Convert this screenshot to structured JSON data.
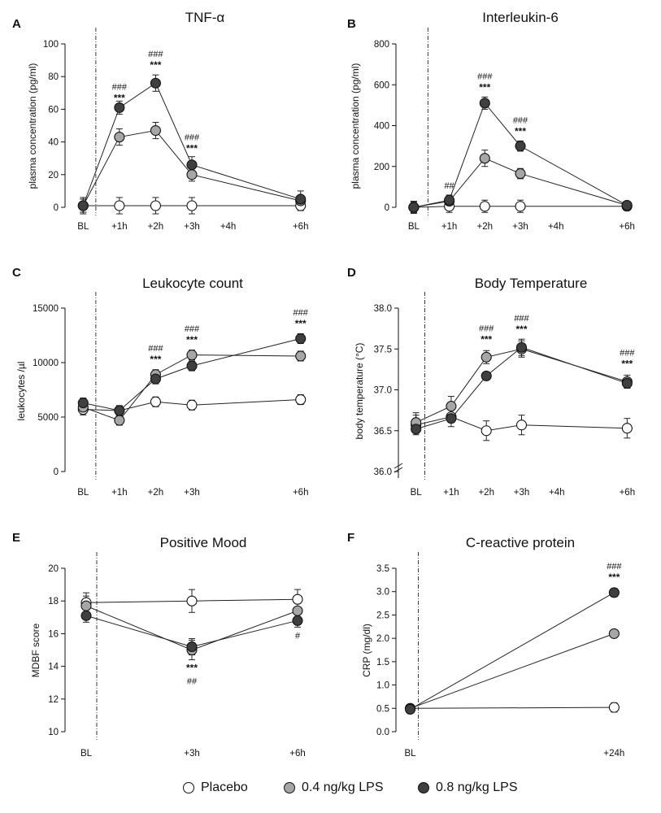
{
  "legend": [
    {
      "label": "Placebo",
      "color": "#ffffff"
    },
    {
      "label": "0.4 ng/kg LPS",
      "color": "#a6a6a6"
    },
    {
      "label": "0.8 ng/kg LPS",
      "color": "#3f3f3f"
    }
  ],
  "chart_data": [
    {
      "letter": "A",
      "type": "line",
      "title": "TNF-α",
      "ylabel": "plasma concentration (pg/ml)",
      "ylim": [
        0,
        100
      ],
      "yticks": [
        "0",
        "20",
        "40",
        "60",
        "80",
        "100"
      ],
      "xlim": [
        -0.5,
        6.5
      ],
      "xtick_labels": [
        {
          "x": 0,
          "label": "BL"
        },
        {
          "x": 1,
          "label": "+1h"
        },
        {
          "x": 2,
          "label": "+2h"
        },
        {
          "x": 3,
          "label": "+3h"
        },
        {
          "x": 4,
          "label": "+4h"
        },
        {
          "x": 6,
          "label": "+6h"
        }
      ],
      "baseline_x": 0.35,
      "series": [
        {
          "name": "Placebo",
          "x": [
            0,
            1,
            2,
            3,
            6
          ],
          "values": [
            1,
            1,
            1,
            1,
            1
          ],
          "err": [
            5,
            5,
            5,
            5,
            3
          ]
        },
        {
          "name": "0.4 ng/kg LPS",
          "x": [
            0,
            1,
            2,
            3,
            6
          ],
          "values": [
            1,
            43,
            47,
            20,
            4
          ],
          "err": [
            4,
            5,
            5,
            4,
            3
          ]
        },
        {
          "name": "0.8 ng/kg LPS",
          "x": [
            0,
            1,
            2,
            3,
            6
          ],
          "values": [
            1,
            61,
            76,
            26,
            5
          ],
          "err": [
            4,
            4,
            5,
            5,
            5
          ]
        }
      ],
      "annotations": [
        {
          "x": 1,
          "y": 61,
          "top": "###",
          "bottom": "***"
        },
        {
          "x": 2,
          "y": 81,
          "top": "###",
          "bottom": "***"
        },
        {
          "x": 3,
          "y": 30,
          "top": "###",
          "bottom": "***"
        }
      ]
    },
    {
      "letter": "B",
      "type": "line",
      "title": "Interleukin-6",
      "ylabel": "plasma concentration (pg/ml)",
      "ylim": [
        0,
        800
      ],
      "yticks": [
        "0",
        "200",
        "400",
        "600",
        "800"
      ],
      "xlim": [
        -0.5,
        6.5
      ],
      "xtick_labels": [
        {
          "x": 0,
          "label": "BL"
        },
        {
          "x": 1,
          "label": "+1h"
        },
        {
          "x": 2,
          "label": "+2h"
        },
        {
          "x": 3,
          "label": "+3h"
        },
        {
          "x": 4,
          "label": "+4h"
        },
        {
          "x": 6,
          "label": "+6h"
        }
      ],
      "baseline_x": 0.4,
      "series": [
        {
          "name": "Placebo",
          "x": [
            0,
            1,
            2,
            3,
            6
          ],
          "values": [
            0,
            5,
            5,
            5,
            5
          ],
          "err": [
            30,
            30,
            30,
            30,
            20
          ]
        },
        {
          "name": "0.4 ng/kg LPS",
          "x": [
            0,
            1,
            2,
            3,
            6
          ],
          "values": [
            0,
            30,
            240,
            165,
            10
          ],
          "err": [
            25,
            25,
            40,
            25,
            15
          ]
        },
        {
          "name": "0.8 ng/kg LPS",
          "x": [
            0,
            1,
            2,
            3,
            6
          ],
          "values": [
            0,
            35,
            510,
            300,
            10
          ],
          "err": [
            25,
            25,
            30,
            25,
            15
          ]
        }
      ],
      "annotations": [
        {
          "x": 1,
          "y": 60,
          "top": "##",
          "bottom": ""
        },
        {
          "x": 2,
          "y": 540,
          "top": "###",
          "bottom": "***"
        },
        {
          "x": 3,
          "y": 325,
          "top": "###",
          "bottom": "***"
        }
      ]
    },
    {
      "letter": "C",
      "type": "line",
      "title": "Leukocyte count",
      "ylabel": "leukocytes /µl",
      "ylim": [
        0,
        15000
      ],
      "yticks": [
        "0",
        "5000",
        "10000",
        "15000"
      ],
      "xlim": [
        -0.5,
        6.5
      ],
      "xtick_labels": [
        {
          "x": 0,
          "label": "BL"
        },
        {
          "x": 1,
          "label": "+1h"
        },
        {
          "x": 2,
          "label": "+2h"
        },
        {
          "x": 3,
          "label": "+3h"
        },
        {
          "x": 6,
          "label": "+6h"
        }
      ],
      "baseline_x": 0.35,
      "series": [
        {
          "name": "Placebo",
          "x": [
            0,
            1,
            2,
            3,
            6
          ],
          "values": [
            5700,
            5600,
            6400,
            6100,
            6600
          ],
          "err": [
            500,
            450,
            450,
            450,
            450
          ]
        },
        {
          "name": "0.4 ng/kg LPS",
          "x": [
            0,
            1,
            2,
            3,
            6
          ],
          "values": [
            5900,
            4700,
            8900,
            10700,
            10600
          ],
          "err": [
            500,
            450,
            450,
            450,
            450
          ]
        },
        {
          "name": "0.8 ng/kg LPS",
          "x": [
            0,
            1,
            2,
            3,
            6
          ],
          "values": [
            6300,
            5600,
            8500,
            9700,
            12200
          ],
          "err": [
            450,
            450,
            450,
            450,
            450
          ]
        }
      ],
      "annotations": [
        {
          "x": 2,
          "y": 9400,
          "top": "###",
          "bottom": "***"
        },
        {
          "x": 3,
          "y": 11200,
          "top": "###",
          "bottom": "***"
        },
        {
          "x": 6,
          "y": 12700,
          "top": "###",
          "bottom": "***"
        }
      ]
    },
    {
      "letter": "D",
      "type": "line",
      "title": "Body Temperature",
      "ylabel": "body temperature (°C)",
      "ylim": [
        36.0,
        38.0
      ],
      "yticks": [
        "36.0",
        "36.5",
        "37.0",
        "37.5",
        "38.0"
      ],
      "axis_break": true,
      "xlim": [
        -0.5,
        6.5
      ],
      "xtick_labels": [
        {
          "x": 0,
          "label": "BL"
        },
        {
          "x": 1,
          "label": "+1h"
        },
        {
          "x": 2,
          "label": "+2h"
        },
        {
          "x": 3,
          "label": "+3h"
        },
        {
          "x": 4,
          "label": "+4h"
        },
        {
          "x": 6,
          "label": "+6h"
        }
      ],
      "baseline_x": 0.25,
      "series": [
        {
          "name": "Placebo",
          "x": [
            0,
            1,
            2,
            3,
            6
          ],
          "values": [
            36.57,
            36.67,
            36.5,
            36.57,
            36.53
          ],
          "err": [
            0.12,
            0.12,
            0.12,
            0.12,
            0.12
          ]
        },
        {
          "name": "0.4 ng/kg LPS",
          "x": [
            0,
            1,
            2,
            3,
            6
          ],
          "values": [
            36.6,
            36.8,
            37.4,
            37.5,
            37.1
          ],
          "err": [
            0.12,
            0.12,
            0.08,
            0.1,
            0.08
          ]
        },
        {
          "name": "0.8 ng/kg LPS",
          "x": [
            0,
            1,
            2,
            3,
            6
          ],
          "values": [
            36.52,
            36.65,
            37.17,
            37.52,
            37.08
          ],
          "err": [
            0.05,
            0.05,
            0.05,
            0.1,
            0.06
          ]
        }
      ],
      "annotations": [
        {
          "x": 2,
          "y": 37.5,
          "top": "###",
          "bottom": "***"
        },
        {
          "x": 3,
          "y": 37.62,
          "top": "###",
          "bottom": "***"
        },
        {
          "x": 6,
          "y": 37.2,
          "top": "###",
          "bottom": "***"
        }
      ]
    },
    {
      "letter": "E",
      "type": "line",
      "title": "Positive Mood",
      "ylabel": "MDBF score",
      "ylim": [
        10,
        20
      ],
      "yticks": [
        "10",
        "12",
        "14",
        "16",
        "18",
        "20"
      ],
      "xlim": [
        -0.3,
        3.3
      ],
      "xtick_labels": [
        {
          "x": 0,
          "label": "BL"
        },
        {
          "x": 1.5,
          "label": "+3h"
        },
        {
          "x": 3,
          "label": "+6h"
        }
      ],
      "baseline_x": 0.15,
      "series": [
        {
          "name": "Placebo",
          "x": [
            0,
            1.5,
            3
          ],
          "values": [
            17.9,
            18.0,
            18.1
          ],
          "err": [
            0.6,
            0.7,
            0.6
          ]
        },
        {
          "name": "0.4 ng/kg LPS",
          "x": [
            0,
            1.5,
            3
          ],
          "values": [
            17.7,
            15.0,
            17.4
          ],
          "err": [
            0.6,
            0.6,
            0.5
          ]
        },
        {
          "name": "0.8 ng/kg LPS",
          "x": [
            0,
            1.5,
            3
          ],
          "values": [
            17.1,
            15.2,
            16.8
          ],
          "err": [
            0.4,
            0.5,
            0.4
          ]
        }
      ],
      "annotations": [
        {
          "x": 1.5,
          "y": 14.4,
          "top": "***",
          "bottom": "##",
          "below": true
        },
        {
          "x": 3,
          "y": 16.4,
          "top": "#",
          "bottom": "",
          "below": true
        }
      ]
    },
    {
      "letter": "F",
      "type": "line",
      "title": "C-reactive protein",
      "ylabel": "CRP (mg/dl)",
      "ylim": [
        0.0,
        3.5
      ],
      "yticks": [
        "0.0",
        "0.5",
        "1.0",
        "1.5",
        "2.0",
        "2.5",
        "3.0",
        "3.5"
      ],
      "xlim": [
        -0.07,
        1.15
      ],
      "xtick_labels": [
        {
          "x": 0,
          "label": "BL"
        },
        {
          "x": 1,
          "label": "+24h"
        }
      ],
      "baseline_x": 0.04,
      "series": [
        {
          "name": "Placebo",
          "x": [
            0,
            1
          ],
          "values": [
            0.5,
            0.52
          ],
          "err": [
            0.05,
            0.1
          ]
        },
        {
          "name": "0.4 ng/kg LPS",
          "x": [
            0,
            1
          ],
          "values": [
            0.5,
            2.1
          ],
          "err": [
            0.04,
            0.08
          ]
        },
        {
          "name": "0.8 ng/kg LPS",
          "x": [
            0,
            1
          ],
          "values": [
            0.48,
            2.98
          ],
          "err": [
            0.04,
            0.09
          ]
        }
      ],
      "annotations": [
        {
          "x": 1,
          "y": 3.1,
          "top": "###",
          "bottom": "***"
        }
      ]
    }
  ]
}
